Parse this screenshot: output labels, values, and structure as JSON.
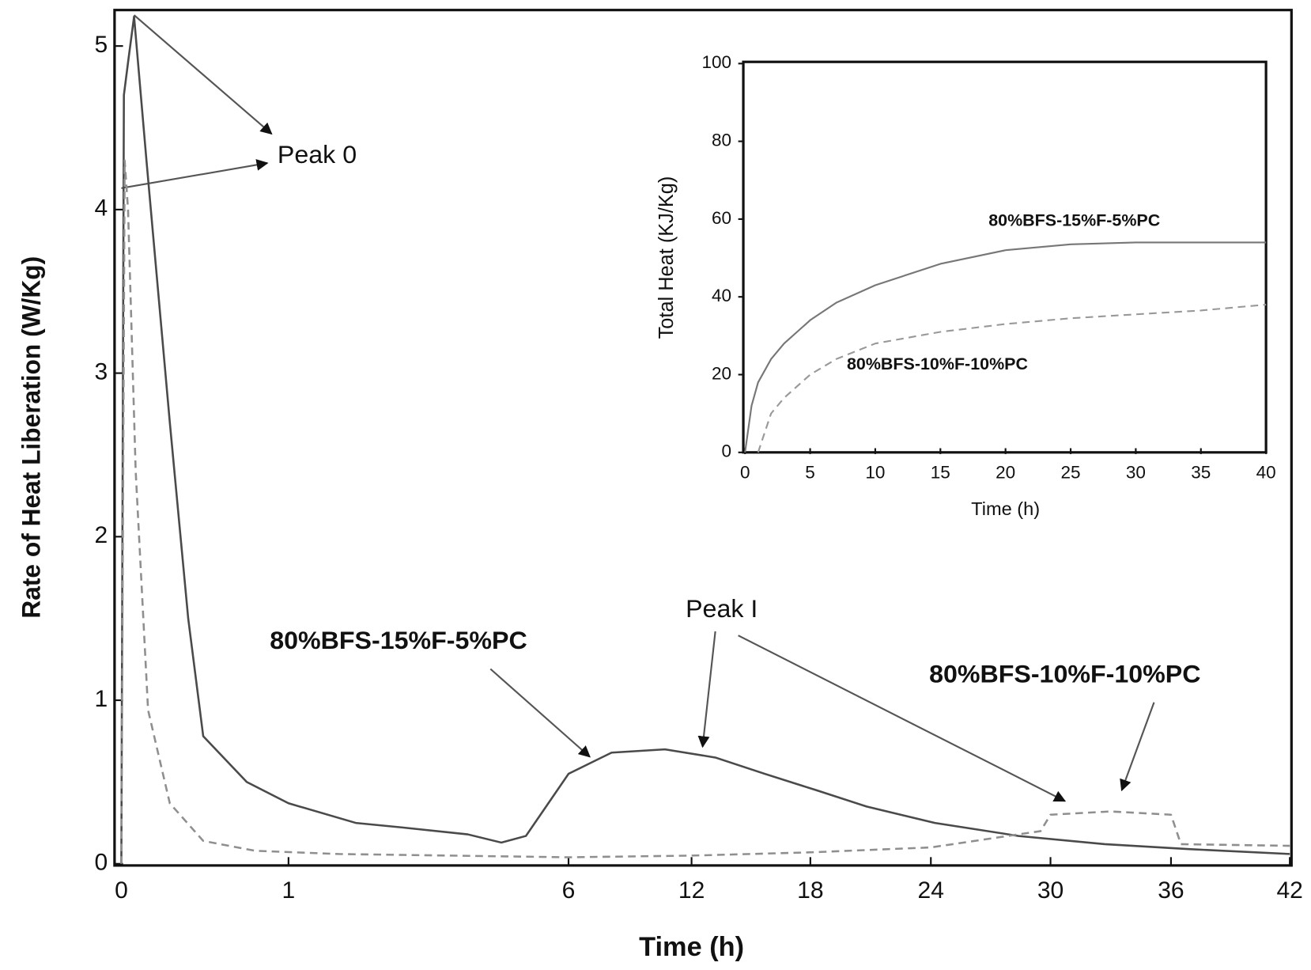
{
  "chart_data": [
    {
      "type": "line",
      "xlabel": "Time (h)",
      "ylabel": "Rate of Heat Liberation (W/Kg)",
      "annotations": [
        "Peak 0",
        "Peak I"
      ],
      "xlim": [
        0,
        42
      ],
      "ylim": [
        0,
        5.22
      ],
      "xticks": [
        0,
        1,
        6,
        12,
        18,
        24,
        30,
        36,
        42
      ],
      "yticks": [
        0,
        1,
        2,
        3,
        4,
        5
      ],
      "series": [
        {
          "name": "80%BFS-15%F-5%PC",
          "color": "#4a4a4a",
          "linestyle": "solid",
          "x": [
            0,
            0.015,
            0.04,
            0.076,
            0.15,
            0.29,
            0.4,
            0.49,
            0.75,
            1.0,
            2.2,
            3.1,
            4.2,
            4.8,
            5.24,
            6,
            8.1,
            10.7,
            13.2,
            15.7,
            18.3,
            20.8,
            24.2,
            28.4,
            32.7,
            36.9,
            42
          ],
          "values": [
            0,
            4.7,
            4.9,
            5.18,
            4.3,
            2.7,
            1.5,
            0.78,
            0.5,
            0.37,
            0.25,
            0.22,
            0.18,
            0.13,
            0.17,
            0.55,
            0.68,
            0.7,
            0.65,
            0.55,
            0.45,
            0.35,
            0.25,
            0.17,
            0.12,
            0.09,
            0.06
          ]
        },
        {
          "name": "80%BFS-10%F-10%PC",
          "color": "#8f8f8f",
          "linestyle": "dashed",
          "x": [
            0,
            0.02,
            0.04,
            0.086,
            0.16,
            0.29,
            0.49,
            0.8,
            1.9,
            6,
            12,
            18,
            24,
            29.5,
            30,
            33,
            36,
            36.5,
            42
          ],
          "values": [
            0,
            4.3,
            4.0,
            2.4,
            0.94,
            0.37,
            0.14,
            0.08,
            0.06,
            0.04,
            0.05,
            0.07,
            0.1,
            0.2,
            0.3,
            0.32,
            0.3,
            0.12,
            0.11
          ]
        }
      ]
    },
    {
      "type": "line",
      "xlabel": "Time (h)",
      "ylabel": "Total Heat (KJ/Kg)",
      "xlim": [
        0,
        40
      ],
      "ylim": [
        0,
        100
      ],
      "xticks": [
        0,
        5,
        10,
        15,
        20,
        25,
        30,
        35,
        40
      ],
      "yticks": [
        0,
        20,
        40,
        60,
        80,
        100
      ],
      "series": [
        {
          "name": "80%BFS-15%F-5%PC",
          "color": "#777777",
          "linestyle": "solid",
          "x": [
            0,
            0.5,
            1,
            2,
            3,
            5,
            7,
            10,
            15,
            20,
            25,
            30,
            40
          ],
          "values": [
            0,
            12,
            18,
            24,
            28,
            34,
            38.5,
            43,
            48.5,
            52,
            53.5,
            54,
            54
          ]
        },
        {
          "name": "80%BFS-10%F-10%PC",
          "color": "#999999",
          "linestyle": "dashed",
          "x": [
            1,
            1.5,
            2,
            3,
            5,
            7,
            10,
            15,
            20,
            25,
            30,
            35,
            40
          ],
          "values": [
            0,
            5,
            10,
            14,
            20,
            24,
            28,
            31,
            33,
            34.5,
            35.5,
            36.5,
            38
          ]
        }
      ]
    }
  ]
}
